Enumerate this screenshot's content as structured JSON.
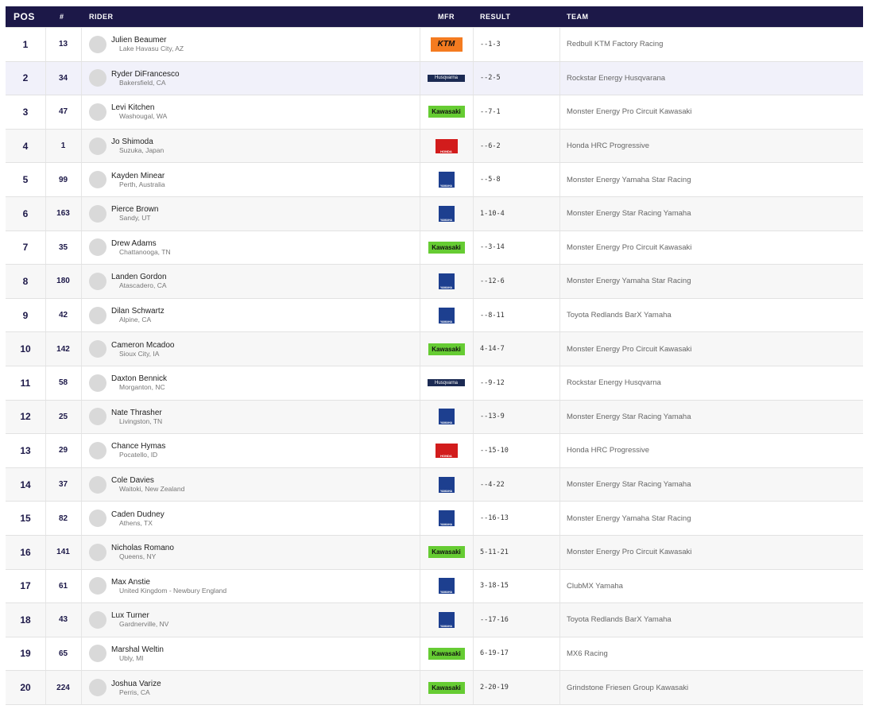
{
  "table": {
    "headers": [
      "POS",
      "#",
      "RIDER",
      "MFR",
      "RESULT",
      "TEAM"
    ],
    "rows": [
      {
        "pos": "1",
        "number": "13",
        "rider": "Julien Beaumer",
        "hometown": "Lake Havasu City, AZ",
        "mfr": "KTM",
        "result": "--1-3",
        "team": "Redbull KTM Factory Racing"
      },
      {
        "pos": "2",
        "number": "34",
        "rider": "Ryder DiFrancesco",
        "hometown": "Bakersfield, CA",
        "mfr": "Husqvarna",
        "result": "--2-5",
        "team": "Rockstar Energy Husqvarana"
      },
      {
        "pos": "3",
        "number": "47",
        "rider": "Levi Kitchen",
        "hometown": "Washougal, WA",
        "mfr": "Kawasaki",
        "result": "--7-1",
        "team": "Monster Energy Pro Circuit Kawasaki"
      },
      {
        "pos": "4",
        "number": "1",
        "rider": "Jo Shimoda",
        "hometown": "Suzuka, Japan",
        "mfr": "HONDA",
        "result": "--6-2",
        "team": "Honda HRC Progressive"
      },
      {
        "pos": "5",
        "number": "99",
        "rider": "Kayden Minear",
        "hometown": "Perth, Australia",
        "mfr": "YAMAHA",
        "result": "--5-8",
        "team": "Monster Energy Yamaha Star Racing"
      },
      {
        "pos": "6",
        "number": "163",
        "rider": "Pierce Brown",
        "hometown": "Sandy, UT",
        "mfr": "YAMAHA",
        "result": "1-10-4",
        "team": "Monster Energy Star Racing Yamaha"
      },
      {
        "pos": "7",
        "number": "35",
        "rider": "Drew Adams",
        "hometown": "Chattanooga, TN",
        "mfr": "Kawasaki",
        "result": "--3-14",
        "team": "Monster Energy Pro Circuit Kawasaki"
      },
      {
        "pos": "8",
        "number": "180",
        "rider": "Landen Gordon",
        "hometown": "Atascadero, CA",
        "mfr": "YAMAHA",
        "result": "--12-6",
        "team": "Monster Energy Yamaha Star Racing"
      },
      {
        "pos": "9",
        "number": "42",
        "rider": "Dilan Schwartz",
        "hometown": "Alpine, CA",
        "mfr": "YAMAHA",
        "result": "--8-11",
        "team": "Toyota Redlands BarX Yamaha"
      },
      {
        "pos": "10",
        "number": "142",
        "rider": "Cameron Mcadoo",
        "hometown": "Sioux City, IA",
        "mfr": "Kawasaki",
        "result": "4-14-7",
        "team": "Monster Energy Pro Circuit Kawasaki"
      },
      {
        "pos": "11",
        "number": "58",
        "rider": "Daxton Bennick",
        "hometown": "Morganton, NC",
        "mfr": "Husqvarna",
        "result": "--9-12",
        "team": "Rockstar Energy Husqvarna"
      },
      {
        "pos": "12",
        "number": "25",
        "rider": "Nate Thrasher",
        "hometown": "Livingston, TN",
        "mfr": "YAMAHA",
        "result": "--13-9",
        "team": "Monster Energy Star Racing Yamaha"
      },
      {
        "pos": "13",
        "number": "29",
        "rider": "Chance Hymas",
        "hometown": "Pocatello, ID",
        "mfr": "HONDA",
        "result": "--15-10",
        "team": "Honda HRC Progressive"
      },
      {
        "pos": "14",
        "number": "37",
        "rider": "Cole Davies",
        "hometown": "Waitoki, New Zealand",
        "mfr": "YAMAHA",
        "result": "--4-22",
        "team": "Monster Energy Star Racing Yamaha"
      },
      {
        "pos": "15",
        "number": "82",
        "rider": "Caden Dudney",
        "hometown": "Athens, TX",
        "mfr": "YAMAHA",
        "result": "--16-13",
        "team": "Monster Energy Yamaha Star Racing"
      },
      {
        "pos": "16",
        "number": "141",
        "rider": "Nicholas Romano",
        "hometown": "Queens, NY",
        "mfr": "Kawasaki",
        "result": "5-11-21",
        "team": "Monster Energy Pro Circuit Kawasaki"
      },
      {
        "pos": "17",
        "number": "61",
        "rider": "Max Anstie",
        "hometown": "United Kingdom - Newbury England",
        "mfr": "YAMAHA",
        "result": "3-18-15",
        "team": "ClubMX Yamaha"
      },
      {
        "pos": "18",
        "number": "43",
        "rider": "Lux Turner",
        "hometown": "Gardnerville, NV",
        "mfr": "YAMAHA",
        "result": "--17-16",
        "team": "Toyota Redlands BarX Yamaha"
      },
      {
        "pos": "19",
        "number": "65",
        "rider": "Marshal Weltin",
        "hometown": "Ubly, MI",
        "mfr": "Kawasaki",
        "result": "6-19-17",
        "team": "MX6 Racing"
      },
      {
        "pos": "20",
        "number": "224",
        "rider": "Joshua Varize",
        "hometown": "Perris, CA",
        "mfr": "Kawasaki",
        "result": "2-20-19",
        "team": "Grindstone Friesen Group Kawasaki"
      }
    ]
  }
}
